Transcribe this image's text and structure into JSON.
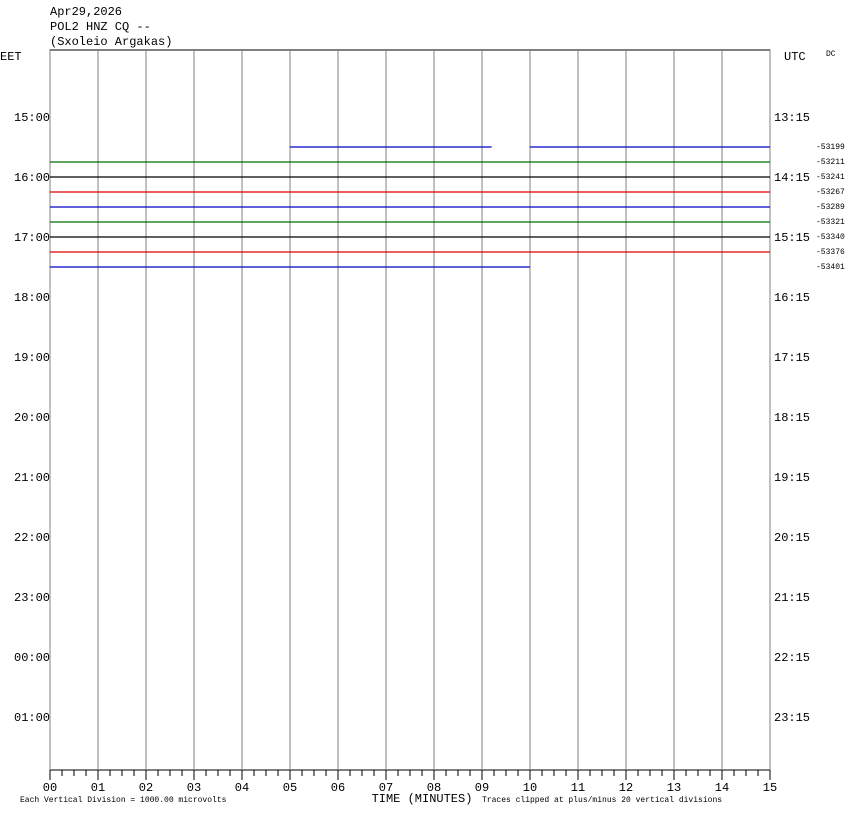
{
  "chart_data": {
    "type": "helicorder",
    "title_lines": [
      "Apr29,2026",
      "POL2 HNZ CQ --",
      "(Sxoleio Argakas)"
    ],
    "left_axis_label": "EET",
    "right_axis_label": "UTC",
    "corner_label": "DC",
    "x_label": "TIME (MINUTES)",
    "note_left": "Each Vertical Division = 1000.00 microvolts",
    "note_right": "Traces clipped at plus/minus 20 vertical divisions",
    "xlim": [
      0,
      15
    ],
    "xticks": [
      {
        "value": 0,
        "label": "00"
      },
      {
        "value": 1,
        "label": "01"
      },
      {
        "value": 2,
        "label": "02"
      },
      {
        "value": 3,
        "label": "03"
      },
      {
        "value": 4,
        "label": "04"
      },
      {
        "value": 5,
        "label": "05"
      },
      {
        "value": 6,
        "label": "06"
      },
      {
        "value": 7,
        "label": "07"
      },
      {
        "value": 8,
        "label": "08"
      },
      {
        "value": 9,
        "label": "09"
      },
      {
        "value": 10,
        "label": "10"
      },
      {
        "value": 11,
        "label": "11"
      },
      {
        "value": 12,
        "label": "12"
      },
      {
        "value": 13,
        "label": "13"
      },
      {
        "value": 14,
        "label": "14"
      },
      {
        "value": 15,
        "label": "15"
      }
    ],
    "ylim": [
      -68,
      652
    ],
    "yticks": [
      {
        "value": 0,
        "label": "15:00"
      },
      {
        "value": 60,
        "label": "16:00"
      },
      {
        "value": 120,
        "label": "17:00"
      },
      {
        "value": 180,
        "label": "18:00"
      },
      {
        "value": 240,
        "label": "19:00"
      },
      {
        "value": 300,
        "label": "20:00"
      },
      {
        "value": 360,
        "label": "21:00"
      },
      {
        "value": 420,
        "label": "22:00"
      },
      {
        "value": 480,
        "label": "23:00"
      },
      {
        "value": 540,
        "label": "00:00"
      },
      {
        "value": 600,
        "label": "01:00"
      }
    ],
    "y2ticks": [
      {
        "value": 0,
        "label": "13:15"
      },
      {
        "value": 60,
        "label": "14:15"
      },
      {
        "value": 120,
        "label": "15:15"
      },
      {
        "value": 180,
        "label": "16:15"
      },
      {
        "value": 240,
        "label": "17:15"
      },
      {
        "value": 300,
        "label": "18:15"
      },
      {
        "value": 360,
        "label": "19:15"
      },
      {
        "value": 420,
        "label": "20:15"
      },
      {
        "value": 480,
        "label": "21:15"
      },
      {
        "value": 540,
        "label": "22:15"
      },
      {
        "value": 600,
        "label": "23:15"
      }
    ],
    "traces": [
      {
        "row": 29,
        "color": "#0000c0",
        "segments": [
          [
            5,
            9.2
          ],
          [
            10,
            15
          ]
        ],
        "label": "-53199"
      },
      {
        "row": 44,
        "color": "#007000",
        "segments": [
          [
            0,
            15
          ]
        ],
        "label": "-53211"
      },
      {
        "row": 59,
        "color": "#000000",
        "segments": [
          [
            0,
            15
          ]
        ],
        "label": "-53241"
      },
      {
        "row": 74,
        "color": "#e00000",
        "segments": [
          [
            0,
            15
          ]
        ],
        "label": "-53267"
      },
      {
        "row": 89,
        "color": "#0000c0",
        "segments": [
          [
            0,
            15
          ]
        ],
        "label": "-53289"
      },
      {
        "row": 104,
        "color": "#007000",
        "segments": [
          [
            0,
            15
          ]
        ],
        "label": "-53321"
      },
      {
        "row": 119,
        "color": "#000000",
        "segments": [
          [
            0,
            15
          ]
        ],
        "label": "-53340"
      },
      {
        "row": 134,
        "color": "#e00000",
        "segments": [
          [
            0,
            15
          ]
        ],
        "label": "-53376"
      },
      {
        "row": 149,
        "color": "#0000c0",
        "segments": [
          [
            0,
            10
          ]
        ],
        "label": "-53401"
      }
    ]
  }
}
